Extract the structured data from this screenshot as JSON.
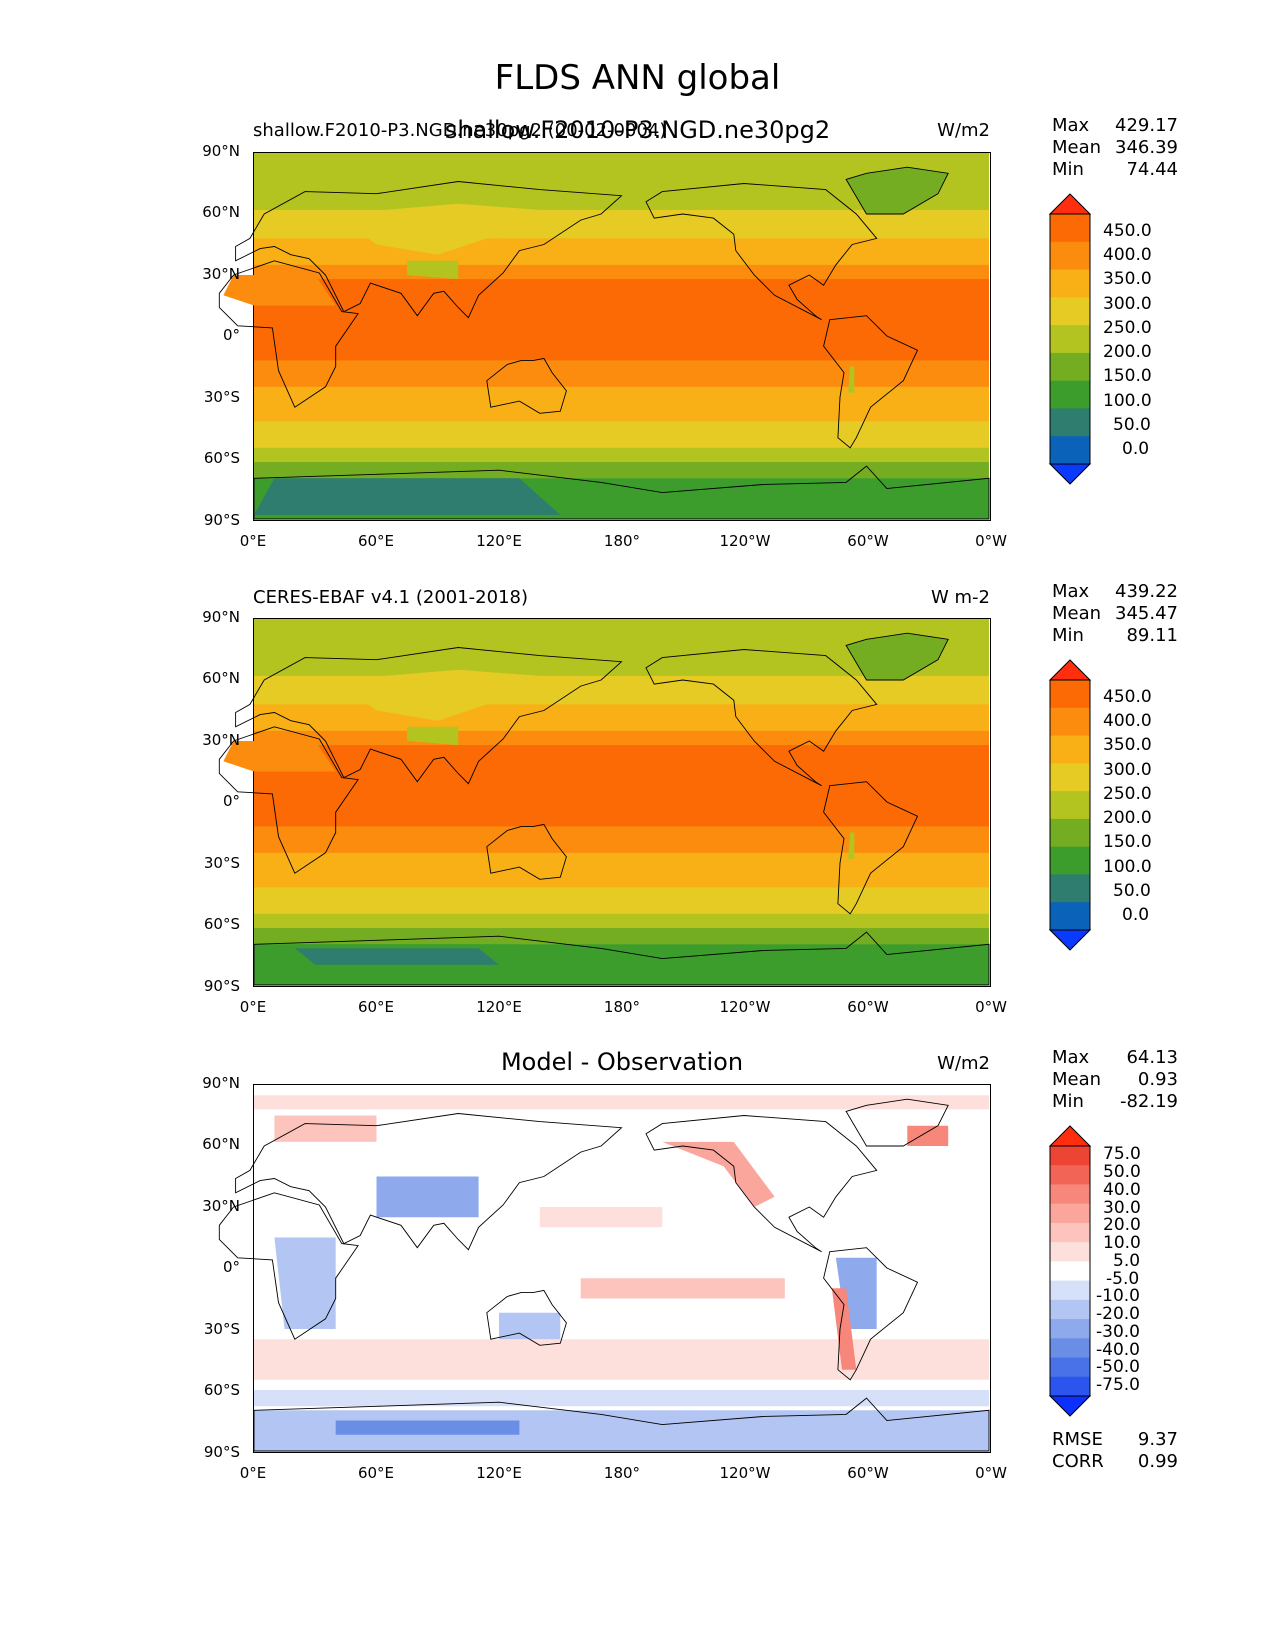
{
  "suptitle": "FLDS ANN global",
  "overlay_title": "shallow.F2010-P3.NGD.ne30pg2",
  "colors": {
    "c0": "#0b3aff",
    "c1": "#0a63b8",
    "c2": "#2f7d6e",
    "c3": "#3c9d2d",
    "c4": "#74ad22",
    "c5": "#b3c421",
    "c6": "#e5cb24",
    "c7": "#f9b016",
    "c8": "#fb8c0e",
    "c9": "#fc6a05",
    "c10": "#fe2e0e"
  },
  "diff_colors": [
    "#0b30ff",
    "#2c55f0",
    "#4a72e8",
    "#6a8ee5",
    "#8ea9ec",
    "#b3c5f2",
    "#d6e0f8",
    "#ffffff",
    "#fde0dc",
    "#fcc4bd",
    "#faa69c",
    "#f7877a",
    "#f26556",
    "#ee4433",
    "#ff2e0e"
  ],
  "chart_data": [
    {
      "type": "heatmap",
      "title_left": "shallow.F2010-P3.NGD.ne30pg2 (00-02-0004)",
      "title_right": "W/m2",
      "y_ticks": [
        "90°N",
        "60°N",
        "30°N",
        "0°",
        "30°S",
        "60°S",
        "90°S"
      ],
      "x_ticks": [
        "0°E",
        "60°E",
        "120°E",
        "180°",
        "120°W",
        "60°W",
        "0°W"
      ],
      "stats": {
        "Max": "429.17",
        "Mean": "346.39",
        "Min": "74.44"
      },
      "colorbar_levels": [
        "450.0",
        "400.0",
        "350.0",
        "300.0",
        "250.0",
        "200.0",
        "150.0",
        "100.0",
        "50.0",
        "0.0"
      ]
    },
    {
      "type": "heatmap",
      "title_left": "CERES-EBAF v4.1 (2001-2018)",
      "title_right": "W m-2",
      "y_ticks": [
        "90°N",
        "60°N",
        "30°N",
        "0°",
        "30°S",
        "60°S",
        "90°S"
      ],
      "x_ticks": [
        "0°E",
        "60°E",
        "120°E",
        "180°",
        "120°W",
        "60°W",
        "0°W"
      ],
      "stats": {
        "Max": "439.22",
        "Mean": "345.47",
        "Min": "89.11"
      },
      "colorbar_levels": [
        "450.0",
        "400.0",
        "350.0",
        "300.0",
        "250.0",
        "200.0",
        "150.0",
        "100.0",
        "50.0",
        "0.0"
      ]
    },
    {
      "type": "heatmap",
      "title_center": "Model - Observation",
      "title_right": "W/m2",
      "y_ticks": [
        "90°N",
        "60°N",
        "30°N",
        "0°",
        "30°S",
        "60°S",
        "90°S"
      ],
      "x_ticks": [
        "0°E",
        "60°E",
        "120°E",
        "180°",
        "120°W",
        "60°W",
        "0°W"
      ],
      "stats": {
        "Max": "64.13",
        "Mean": "0.93",
        "Min": "-82.19"
      },
      "colorbar_levels": [
        "75.0",
        "50.0",
        "40.0",
        "30.0",
        "20.0",
        "10.0",
        "5.0",
        "-5.0",
        "-10.0",
        "-20.0",
        "-30.0",
        "-40.0",
        "-50.0",
        "-75.0"
      ],
      "metrics": {
        "RMSE": "9.37",
        "CORR": "0.99"
      }
    }
  ]
}
